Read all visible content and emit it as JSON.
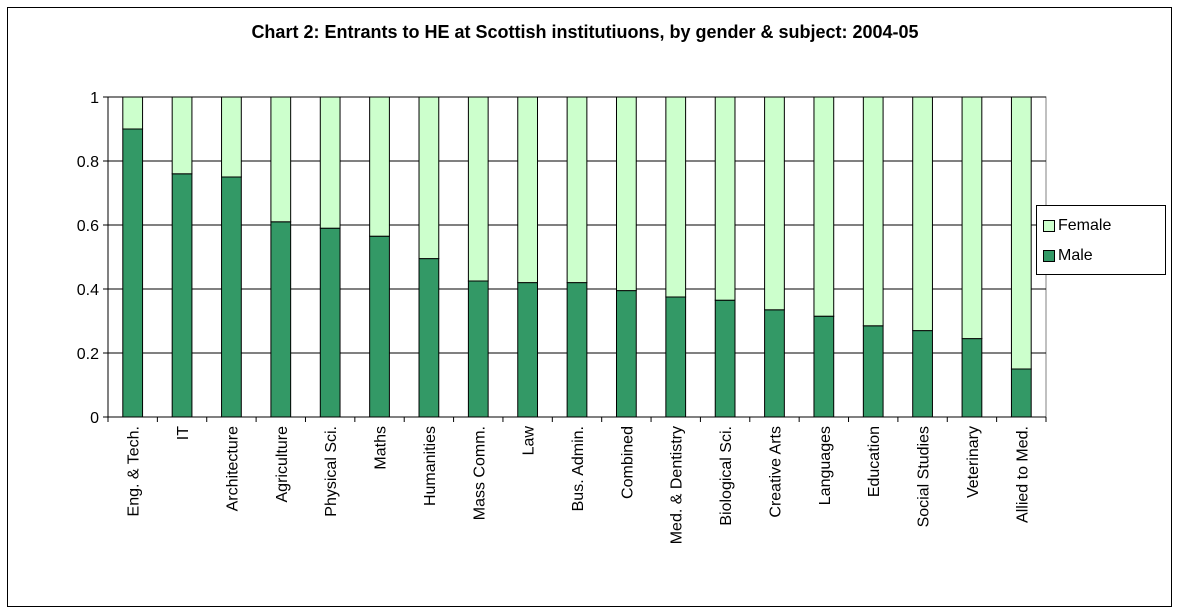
{
  "chart_data": {
    "type": "bar",
    "stacked": true,
    "title": "Chart 2: Entrants to HE at Scottish institutiuons, by gender &  subject: 2004-05",
    "categories": [
      "Eng. & Tech.",
      "IT",
      "Architecture",
      "Agriculture",
      "Physical Sci.",
      "Maths",
      "Humanities",
      "Mass Comm.",
      "Law",
      "Bus. Admin.",
      "Combined",
      "Med. & Dentistry",
      "Biological Sci.",
      "Creative Arts",
      "Languages",
      "Education",
      "Social Studies",
      "Veterinary",
      "Allied to Med."
    ],
    "series": [
      {
        "name": "Male",
        "color": "#339966",
        "values": [
          0.9,
          0.76,
          0.75,
          0.61,
          0.59,
          0.565,
          0.495,
          0.425,
          0.42,
          0.42,
          0.395,
          0.375,
          0.365,
          0.335,
          0.315,
          0.285,
          0.27,
          0.245,
          0.15
        ]
      },
      {
        "name": "Female",
        "color": "#CCFFCC",
        "values": [
          0.1,
          0.24,
          0.25,
          0.39,
          0.41,
          0.435,
          0.505,
          0.575,
          0.58,
          0.58,
          0.605,
          0.625,
          0.635,
          0.665,
          0.685,
          0.715,
          0.73,
          0.755,
          0.85
        ]
      }
    ],
    "yticks": [
      "0",
      "0.2",
      "0.4",
      "0.6",
      "0.8",
      "1"
    ],
    "ylim": [
      0,
      1
    ],
    "grid": true,
    "legend_position": "right",
    "legend_order": [
      "Female",
      "Male"
    ]
  }
}
